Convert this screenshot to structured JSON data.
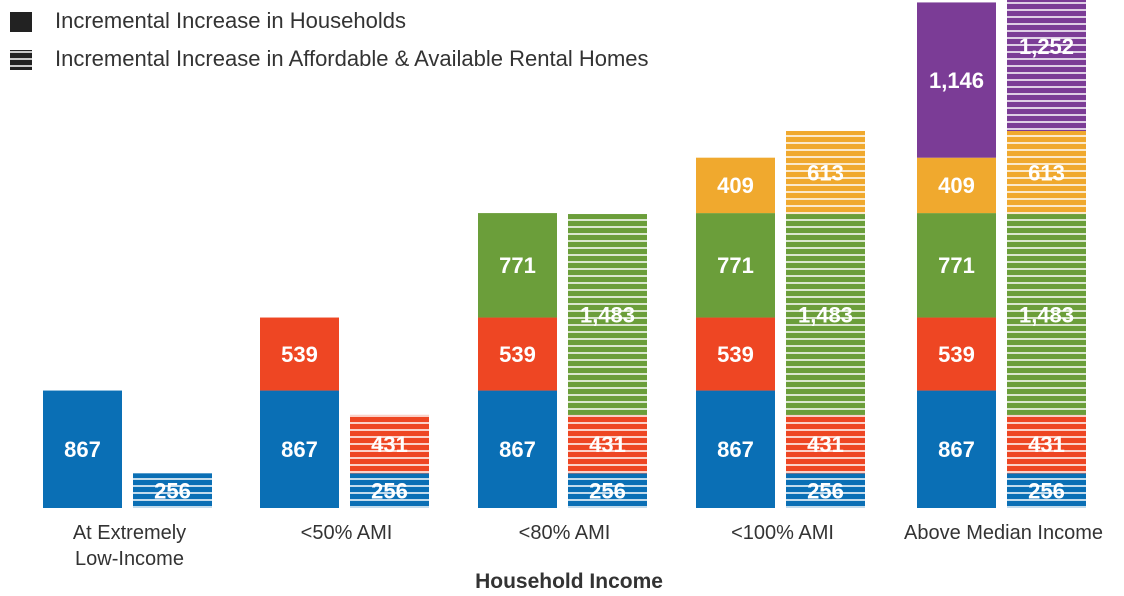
{
  "chart_data": {
    "type": "stacked_grouped_bar",
    "categories": [
      "At Extremely Low-Income",
      "<50% AMI",
      "<80% AMI",
      "<100% AMI",
      "Above Median Income"
    ],
    "xlabel": "Household Income",
    "colors": [
      "#0a6fb5",
      "#ee4623",
      "#6b9e3a",
      "#f0a92e",
      "#7b3c96"
    ],
    "ylim": [
      0,
      3750
    ],
    "series": [
      {
        "name": "Incremental Increase in Households",
        "pattern": "solid",
        "color": "#222222",
        "values": [
          [
            867
          ],
          [
            867,
            539
          ],
          [
            867,
            539,
            771
          ],
          [
            867,
            539,
            771,
            409
          ],
          [
            867,
            539,
            771,
            409,
            1146
          ]
        ],
        "value_labels": [
          [
            "867"
          ],
          [
            "867",
            "539"
          ],
          [
            "867",
            "539",
            "771"
          ],
          [
            "867",
            "539",
            "771",
            "409"
          ],
          [
            "867",
            "539",
            "771",
            "409",
            "1,146"
          ]
        ]
      },
      {
        "name": "Incremental Increase in Affordable & Available Rental Homes",
        "pattern": "striped",
        "color": "#222222",
        "values": [
          [
            256
          ],
          [
            256,
            431
          ],
          [
            256,
            431,
            1483
          ],
          [
            256,
            431,
            1483,
            613
          ],
          [
            256,
            431,
            1483,
            613,
            1252
          ]
        ],
        "value_labels": [
          [
            "256"
          ],
          [
            "256",
            "431"
          ],
          [
            "256",
            "431",
            "1,483"
          ],
          [
            "256",
            "431",
            "1,483",
            "613"
          ],
          [
            "256",
            "431",
            "1,483",
            "613",
            "1,252"
          ]
        ]
      }
    ]
  }
}
